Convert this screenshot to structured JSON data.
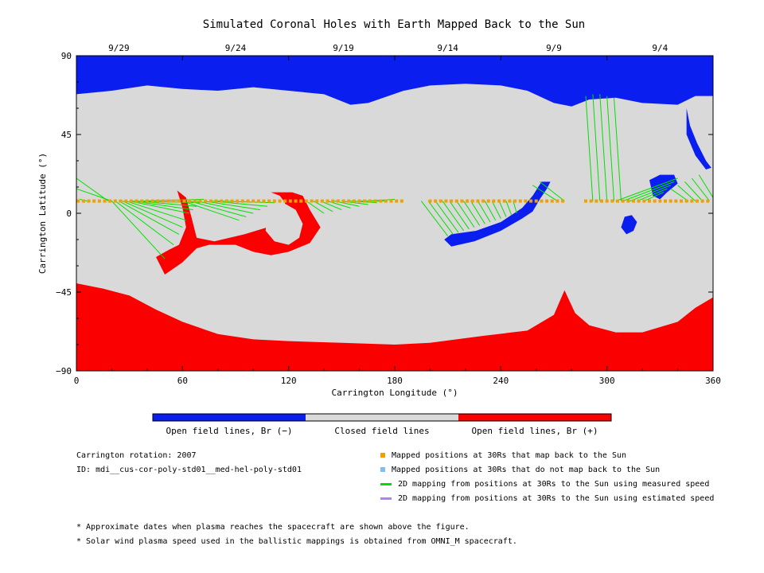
{
  "colors": {
    "open_negative": "#0a1ef0",
    "closed": "#d9d9d9",
    "open_positive": "#fa0000",
    "mapped": "#f0a000",
    "not_mapped": "#80c0f0",
    "measured_line": "#00e000",
    "estimated_line": "#b080ff"
  },
  "chart_data": {
    "type": "heatmap",
    "title": "Simulated Coronal Holes with Earth Mapped Back to the Sun",
    "xlabel": "Carrington Longitude (°)",
    "ylabel": "Carrington Latitude (°)",
    "xlim": [
      0,
      360
    ],
    "ylim": [
      -90,
      90
    ],
    "xticks": [
      {
        "value": 0,
        "label": "0"
      },
      {
        "value": 60,
        "label": "60"
      },
      {
        "value": 120,
        "label": "120"
      },
      {
        "value": 180,
        "label": "180"
      },
      {
        "value": 240,
        "label": "240"
      },
      {
        "value": 300,
        "label": "300"
      },
      {
        "value": 360,
        "label": "360"
      }
    ],
    "yticks": [
      {
        "value": 90,
        "label": "90"
      },
      {
        "value": 45,
        "label": "45"
      },
      {
        "value": 0,
        "label": "0"
      },
      {
        "value": -45,
        "label": "−45"
      },
      {
        "value": -90,
        "label": "−90"
      }
    ],
    "date_ticks": [
      {
        "lon": 24,
        "label": "9/29"
      },
      {
        "lon": 90,
        "label": "9/24"
      },
      {
        "lon": 151,
        "label": "9/19"
      },
      {
        "lon": 210,
        "label": "9/14"
      },
      {
        "lon": 270,
        "label": "9/9"
      },
      {
        "lon": 330,
        "label": "9/4"
      }
    ],
    "regions": {
      "north_hole_edge": [
        [
          0,
          68
        ],
        [
          20,
          70
        ],
        [
          40,
          73
        ],
        [
          60,
          71
        ],
        [
          80,
          70
        ],
        [
          100,
          72
        ],
        [
          120,
          70
        ],
        [
          140,
          68
        ],
        [
          155,
          62
        ],
        [
          165,
          63
        ],
        [
          185,
          70
        ],
        [
          200,
          73
        ],
        [
          220,
          74
        ],
        [
          240,
          73
        ],
        [
          255,
          70
        ],
        [
          270,
          63
        ],
        [
          280,
          61
        ],
        [
          290,
          65
        ],
        [
          305,
          66
        ],
        [
          320,
          63
        ],
        [
          340,
          62
        ],
        [
          350,
          67
        ],
        [
          360,
          67
        ]
      ],
      "south_hole_edge": [
        [
          0,
          -40
        ],
        [
          15,
          -43
        ],
        [
          30,
          -47
        ],
        [
          45,
          -55
        ],
        [
          60,
          -62
        ],
        [
          80,
          -69
        ],
        [
          100,
          -72
        ],
        [
          120,
          -73
        ],
        [
          150,
          -74
        ],
        [
          180,
          -75
        ],
        [
          200,
          -74
        ],
        [
          230,
          -70
        ],
        [
          255,
          -67
        ],
        [
          270,
          -58
        ],
        [
          276,
          -44
        ],
        [
          282,
          -57
        ],
        [
          290,
          -64
        ],
        [
          305,
          -68
        ],
        [
          320,
          -68
        ],
        [
          340,
          -62
        ],
        [
          350,
          -54
        ],
        [
          360,
          -48
        ]
      ],
      "blobs": [
        {
          "color": "open_negative",
          "points": [
            [
              208,
              -15
            ],
            [
              212,
              -19
            ],
            [
              225,
              -16
            ],
            [
              240,
              -10
            ],
            [
              252,
              -3
            ],
            [
              258,
              1
            ],
            [
              262,
              8
            ],
            [
              266,
              14
            ],
            [
              268,
              18
            ],
            [
              263,
              18
            ],
            [
              258,
              10
            ],
            [
              252,
              3
            ],
            [
              240,
              -5
            ],
            [
              226,
              -10
            ],
            [
              212,
              -12
            ]
          ]
        },
        {
          "color": "open_negative",
          "points": [
            [
              324,
              19
            ],
            [
              330,
              22
            ],
            [
              338,
              22
            ],
            [
              340,
              17
            ],
            [
              334,
              12
            ],
            [
              330,
              8
            ],
            [
              326,
              10
            ]
          ]
        },
        {
          "color": "open_negative",
          "points": [
            [
              311,
              -12
            ],
            [
              315,
              -10
            ],
            [
              317,
              -5
            ],
            [
              314,
              -1
            ],
            [
              310,
              -2
            ],
            [
              308,
              -8
            ]
          ]
        },
        {
          "color": "open_negative",
          "points": [
            [
              345,
              60
            ],
            [
              347,
              50
            ],
            [
              351,
              40
            ],
            [
              356,
              30
            ],
            [
              359,
              26
            ],
            [
              356,
              25
            ],
            [
              350,
              33
            ],
            [
              345,
              45
            ]
          ]
        },
        {
          "color": "open_positive",
          "points": [
            [
              45,
              -25
            ],
            [
              52,
              -21
            ],
            [
              58,
              -18
            ],
            [
              62,
              -8
            ],
            [
              60,
              3
            ],
            [
              57,
              13
            ],
            [
              62,
              9
            ],
            [
              65,
              -2
            ],
            [
              68,
              -14
            ],
            [
              78,
              -16
            ],
            [
              95,
              -12
            ],
            [
              108,
              -8
            ],
            [
              116,
              -2
            ],
            [
              118,
              6
            ],
            [
              115,
              10
            ],
            [
              110,
              12
            ],
            [
              122,
              12
            ],
            [
              128,
              10
            ],
            [
              132,
              2
            ],
            [
              138,
              -8
            ],
            [
              132,
              -17
            ],
            [
              120,
              -22
            ],
            [
              110,
              -24
            ],
            [
              100,
              -22
            ],
            [
              90,
              -18
            ],
            [
              75,
              -18
            ],
            [
              68,
              -20
            ],
            [
              60,
              -28
            ],
            [
              50,
              -35
            ]
          ]
        },
        {
          "color": "closed",
          "points": [
            [
              107,
              -10
            ],
            [
              112,
              -16
            ],
            [
              120,
              -18
            ],
            [
              126,
              -14
            ],
            [
              128,
              -6
            ],
            [
              124,
              2
            ],
            [
              117,
              6
            ],
            [
              108,
              2
            ]
          ]
        }
      ]
    },
    "mapped_positions_lat": 7,
    "mapped_positions_lon": [
      1,
      4,
      7,
      10,
      13,
      16,
      19,
      22,
      25,
      28,
      31,
      34,
      37,
      40,
      43,
      46,
      49,
      52,
      55,
      58,
      61,
      64,
      67,
      70,
      73,
      76,
      79,
      82,
      85,
      88,
      91,
      94,
      97,
      100,
      103,
      106,
      109,
      112,
      115,
      118,
      121,
      124,
      127,
      130,
      133,
      136,
      139,
      142,
      145,
      148,
      151,
      154,
      157,
      160,
      163,
      166,
      169,
      172,
      175,
      178,
      181,
      184,
      200,
      203,
      206,
      209,
      212,
      215,
      218,
      221,
      224,
      227,
      230,
      233,
      236,
      239,
      242,
      245,
      248,
      251,
      254,
      257,
      260,
      263,
      266,
      269,
      272,
      275,
      288,
      291,
      294,
      297,
      300,
      303,
      306,
      309,
      312,
      315,
      318,
      321,
      324,
      327,
      330,
      333,
      336,
      339,
      342,
      345,
      348,
      351,
      354,
      357
    ],
    "measured_mapping": [
      [
        0,
        20,
        18,
        7
      ],
      [
        0,
        14,
        20,
        7
      ],
      [
        2,
        8,
        6,
        7
      ],
      [
        50,
        -26,
        20,
        7
      ],
      [
        55,
        -18,
        22,
        7
      ],
      [
        58,
        -12,
        24,
        7
      ],
      [
        60,
        -8,
        26,
        7
      ],
      [
        62,
        -4,
        28,
        7
      ],
      [
        64,
        0,
        30,
        7
      ],
      [
        66,
        2,
        32,
        7
      ],
      [
        68,
        4,
        34,
        7
      ],
      [
        70,
        6,
        36,
        7
      ],
      [
        72,
        8,
        38,
        7
      ],
      [
        92,
        -4,
        60,
        7
      ],
      [
        96,
        -2,
        64,
        7
      ],
      [
        100,
        0,
        68,
        7
      ],
      [
        104,
        2,
        72,
        7
      ],
      [
        108,
        4,
        76,
        7
      ],
      [
        112,
        6,
        80,
        7
      ],
      [
        140,
        0,
        130,
        7
      ],
      [
        145,
        1,
        134,
        7
      ],
      [
        150,
        2,
        138,
        7
      ],
      [
        155,
        3,
        142,
        7
      ],
      [
        160,
        4,
        146,
        7
      ],
      [
        165,
        5,
        150,
        7
      ],
      [
        170,
        6,
        155,
        7
      ],
      [
        175,
        7,
        160,
        7
      ],
      [
        180,
        8,
        165,
        7
      ],
      [
        210,
        -13,
        195,
        7
      ],
      [
        213,
        -12,
        199,
        7
      ],
      [
        216,
        -11,
        203,
        7
      ],
      [
        219,
        -10,
        207,
        7
      ],
      [
        222,
        -9,
        211,
        7
      ],
      [
        225,
        -8,
        215,
        7
      ],
      [
        228,
        -7,
        219,
        7
      ],
      [
        231,
        -6,
        223,
        7
      ],
      [
        234,
        -5,
        227,
        7
      ],
      [
        237,
        -4,
        231,
        7
      ],
      [
        240,
        -3,
        235,
        7
      ],
      [
        243,
        -2,
        239,
        7
      ],
      [
        246,
        -1,
        243,
        7
      ],
      [
        249,
        0,
        247,
        7
      ],
      [
        258,
        16,
        272,
        7
      ],
      [
        262,
        18,
        276,
        7
      ],
      [
        288,
        67,
        292,
        7
      ],
      [
        292,
        68,
        296,
        7
      ],
      [
        296,
        68,
        300,
        7
      ],
      [
        300,
        67,
        304,
        7
      ],
      [
        304,
        66,
        308,
        7
      ],
      [
        340,
        20,
        305,
        7
      ],
      [
        338,
        18,
        309,
        7
      ],
      [
        336,
        16,
        313,
        7
      ],
      [
        334,
        14,
        317,
        7
      ],
      [
        332,
        12,
        321,
        7
      ],
      [
        336,
        14,
        346,
        7
      ],
      [
        340,
        16,
        350,
        7
      ],
      [
        344,
        18,
        354,
        7
      ],
      [
        348,
        20,
        358,
        7
      ],
      [
        352,
        22,
        360,
        9
      ]
    ],
    "colorbar": [
      {
        "color": "open_negative",
        "label": "Open field lines, Br (−)"
      },
      {
        "color": "closed",
        "label": "Closed field lines"
      },
      {
        "color": "open_positive",
        "label": "Open field lines, Br (+)"
      }
    ]
  },
  "info": {
    "rotation": "Carrington rotation: 2007",
    "id": "ID: mdi__cus-cor-poly-std01__med-hel-poly-std01"
  },
  "legend": [
    {
      "marker": "square",
      "color": "mapped",
      "label": "Mapped positions at 30Rs that map back to the Sun"
    },
    {
      "marker": "square",
      "color": "not_mapped",
      "label": "Mapped positions at 30Rs that do not map back to the Sun"
    },
    {
      "marker": "line",
      "color": "measured_line",
      "label": "2D mapping from positions at 30Rs to the Sun using measured speed"
    },
    {
      "marker": "line",
      "color": "estimated_line",
      "label": "2D mapping from positions at 30Rs to the Sun using estimated speed"
    }
  ],
  "notes": [
    "* Approximate dates when plasma reaches the spacecraft are shown above the figure.",
    "* Solar wind plasma speed used in the ballistic mappings is obtained from OMNI_M spacecraft."
  ]
}
